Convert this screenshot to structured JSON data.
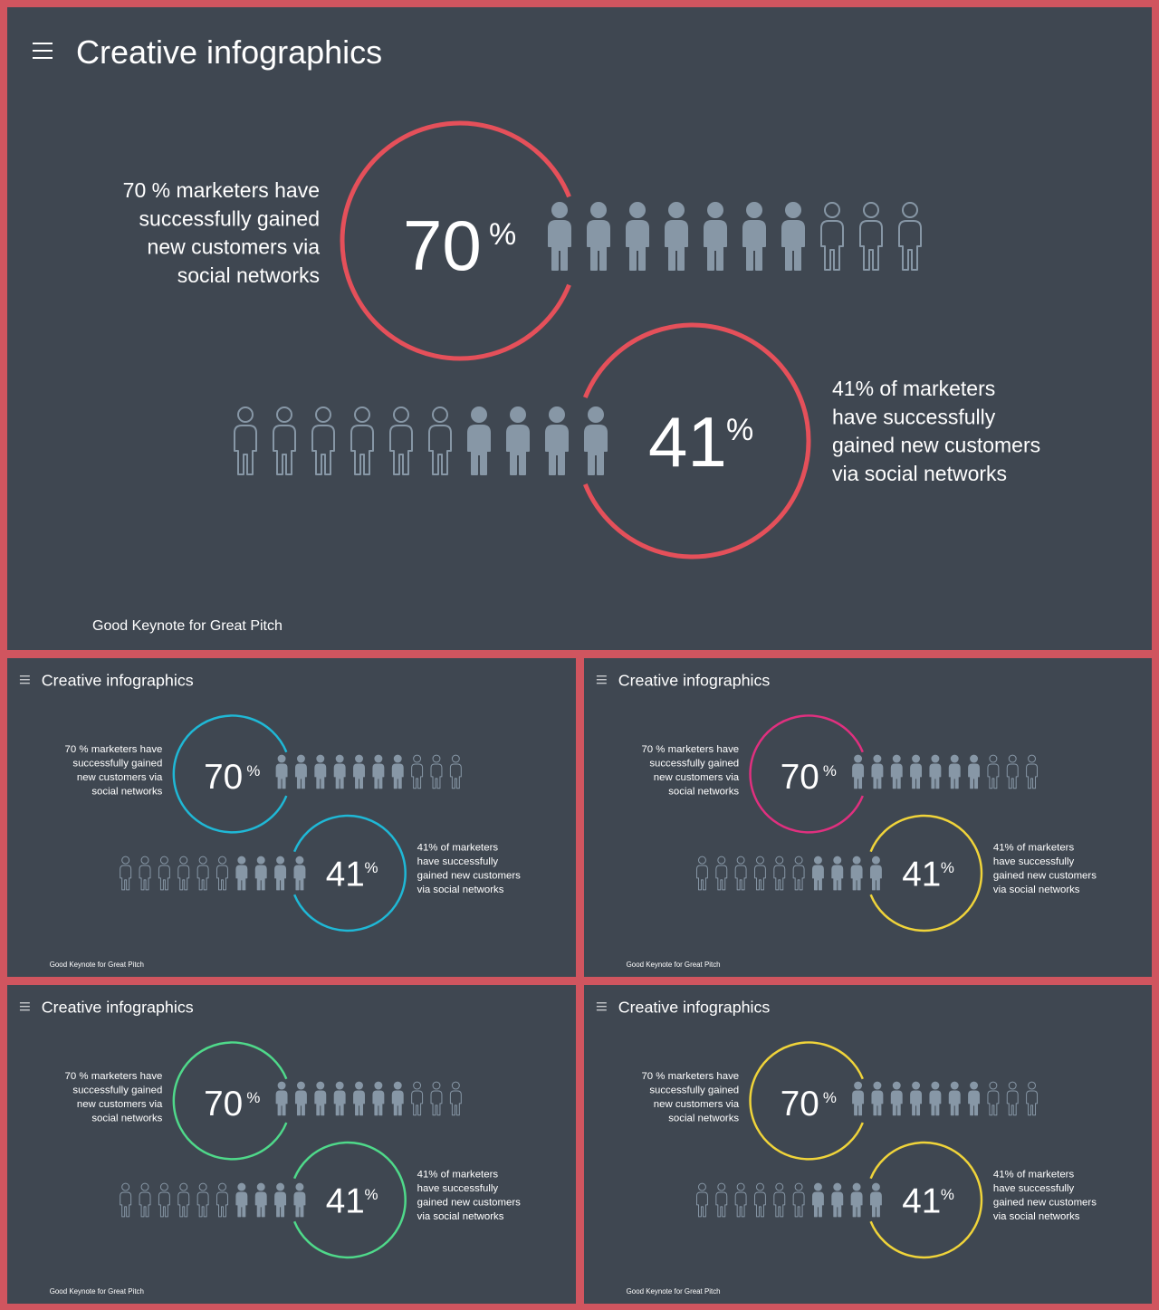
{
  "slides": [
    {
      "title": "Creative infographics",
      "footer": "Good Keynote for Great Pitch",
      "stats": [
        {
          "value": 70,
          "unit": "%",
          "lines": [
            "70 % marketers have",
            "successfully gained",
            "new customers via",
            "social networks"
          ],
          "color": "#e5505a"
        },
        {
          "value": 41,
          "unit": "%",
          "lines": [
            "41% of marketers",
            "have successfully",
            "gained new customers",
            "via social networks"
          ],
          "color": "#e5505a"
        }
      ]
    },
    {
      "title": "Creative infographics",
      "footer": "Good Keynote for Great Pitch",
      "stats": [
        {
          "value": 70,
          "unit": "%",
          "lines": [
            "70 % marketers have",
            "successfully gained",
            "new customers via",
            "social networks"
          ],
          "color": "#1fb8d6"
        },
        {
          "value": 41,
          "unit": "%",
          "lines": [
            "41% of marketers",
            "have successfully",
            "gained new customers",
            "via social networks"
          ],
          "color": "#1fb8d6"
        }
      ]
    },
    {
      "title": "Creative infographics",
      "footer": "Good Keynote for Great Pitch",
      "stats": [
        {
          "value": 70,
          "unit": "%",
          "lines": [
            "70 % marketers have",
            "successfully gained",
            "new customers via",
            "social networks"
          ],
          "color": "#e0307f"
        },
        {
          "value": 41,
          "unit": "%",
          "lines": [
            "41% of marketers",
            "have successfully",
            "gained new customers",
            "via social networks"
          ],
          "color": "#f0d43a"
        }
      ]
    },
    {
      "title": "Creative infographics",
      "footer": "Good Keynote for Great Pitch",
      "stats": [
        {
          "value": 70,
          "unit": "%",
          "lines": [
            "70 % marketers have",
            "successfully gained",
            "new customers via",
            "social networks"
          ],
          "color": "#4fd98a"
        },
        {
          "value": 41,
          "unit": "%",
          "lines": [
            "41% of marketers",
            "have successfully",
            "gained new customers",
            "via social networks"
          ],
          "color": "#4fd98a"
        }
      ]
    },
    {
      "title": "Creative infographics",
      "footer": "Good Keynote for Great Pitch",
      "stats": [
        {
          "value": 70,
          "unit": "%",
          "lines": [
            "70 % marketers have",
            "successfully gained",
            "new customers via",
            "social networks"
          ],
          "color": "#f0d43a"
        },
        {
          "value": 41,
          "unit": "%",
          "lines": [
            "41% of marketers",
            "have successfully",
            "gained new customers",
            "via social networks"
          ],
          "color": "#f0d43a"
        }
      ]
    }
  ]
}
